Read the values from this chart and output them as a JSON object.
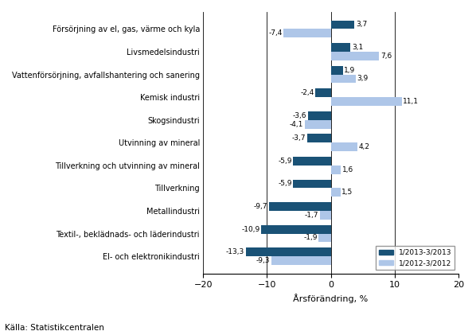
{
  "categories": [
    "El- och elektronikindustri",
    "Textil-, beklädnads- och läderindustri",
    "Metallindustri",
    "Tillverkning",
    "Tillverkning och utvinning av mineral",
    "Utvinning av mineral",
    "Skogsindustri",
    "Kemisk industri",
    "Vattenförsörjning, avfallshantering och sanering",
    "Livsmedelsindustri",
    "Försörjning av el, gas, värme och kyla"
  ],
  "values_2013": [
    -13.3,
    -10.9,
    -9.7,
    -5.9,
    -5.9,
    -3.7,
    -3.6,
    -2.4,
    1.9,
    3.1,
    3.7
  ],
  "values_2012": [
    -9.3,
    -1.9,
    -1.7,
    1.5,
    1.6,
    4.2,
    -4.1,
    11.1,
    3.9,
    7.6,
    -7.4
  ],
  "color_2013": "#1a5276",
  "color_2012": "#aec6e8",
  "xlabel": "Årsförändring, %",
  "xlim": [
    -20,
    20
  ],
  "xticks": [
    -20,
    -10,
    0,
    10,
    20
  ],
  "legend_2013": "1/2013-3/2013",
  "legend_2012": "1/2012-3/2012",
  "source": "Källa: Statistikcentralen",
  "bar_height": 0.38
}
